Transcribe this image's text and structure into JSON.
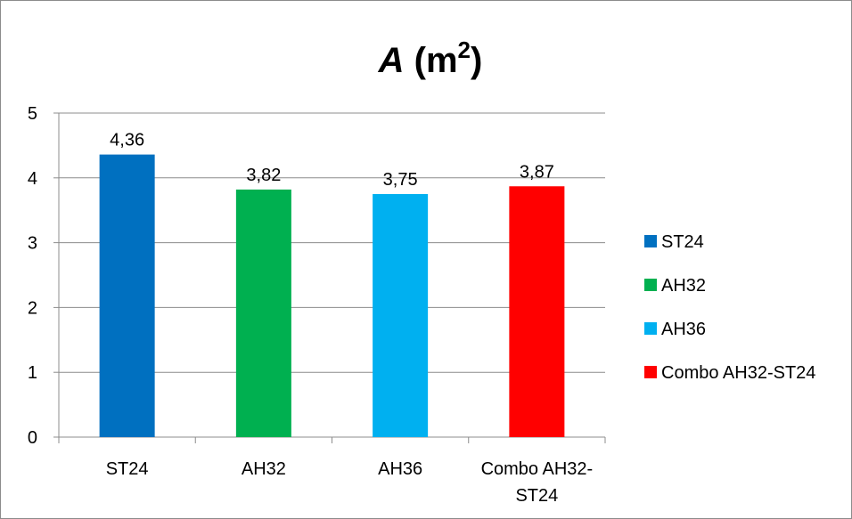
{
  "chart_data": {
    "type": "bar",
    "title": {
      "italic": "A",
      "rest": " (m",
      "sup": "2",
      "end": ")"
    },
    "categories": [
      [
        "ST24"
      ],
      [
        "AH32"
      ],
      [
        "AH36"
      ],
      [
        "Combo AH32-",
        "ST24"
      ]
    ],
    "series": [
      {
        "name": "ST24",
        "value": 4.36,
        "label": "4,36",
        "color": "#0070C0"
      },
      {
        "name": "AH32",
        "value": 3.82,
        "label": "3,82",
        "color": "#00B050"
      },
      {
        "name": "AH36",
        "value": 3.75,
        "label": "3,75",
        "color": "#00B0F0"
      },
      {
        "name": "Combo AH32-ST24",
        "value": 3.87,
        "label": "3,87",
        "color": "#FF0000"
      }
    ],
    "ylim": [
      0,
      5
    ],
    "yticks": [
      "0",
      "1",
      "2",
      "3",
      "4",
      "5"
    ],
    "grid": true,
    "legend": "right",
    "xlabel": "",
    "ylabel": ""
  }
}
